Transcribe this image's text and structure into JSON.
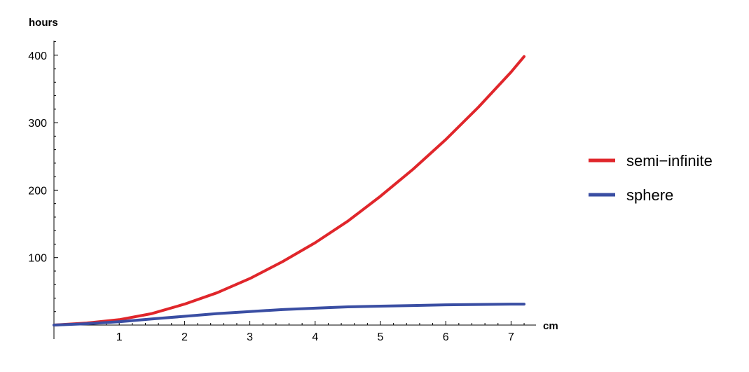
{
  "chart_data": {
    "type": "line",
    "xlabel": "cm",
    "ylabel": "hours",
    "xlim": [
      0,
      7.2
    ],
    "ylim": [
      0,
      400
    ],
    "x_ticks": [
      1,
      2,
      3,
      4,
      5,
      6,
      7
    ],
    "y_ticks": [
      100,
      200,
      300,
      400
    ],
    "legend_position": "right",
    "series": [
      {
        "name": "semi−infinite",
        "color": "#e0262b",
        "x": [
          0,
          0.5,
          1,
          1.5,
          2,
          2.5,
          3,
          3.5,
          4,
          4.5,
          5,
          5.5,
          6,
          6.5,
          7,
          7.2
        ],
        "y": [
          0,
          3,
          8,
          17,
          31,
          48,
          69,
          94,
          122,
          154,
          191,
          231,
          275,
          323,
          375,
          398
        ]
      },
      {
        "name": "sphere",
        "color": "#3a4ea3",
        "x": [
          0,
          0.5,
          1,
          1.5,
          2,
          2.5,
          3,
          3.5,
          4,
          4.5,
          5,
          5.5,
          6,
          6.5,
          7,
          7.2
        ],
        "y": [
          0,
          2,
          5,
          9,
          13,
          17,
          20,
          23,
          25,
          27,
          28,
          29,
          30,
          30.5,
          31,
          31
        ]
      }
    ]
  }
}
